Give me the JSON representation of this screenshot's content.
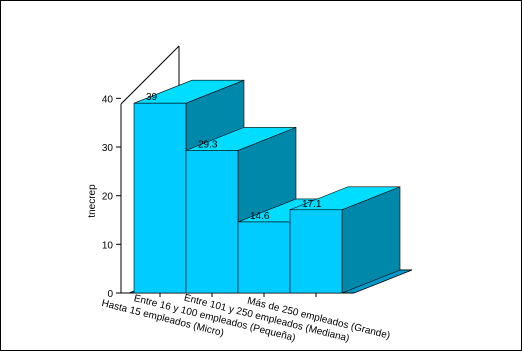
{
  "chart_data": {
    "type": "bar",
    "title": "",
    "xlabel": "",
    "ylabel": "tnecrep",
    "ylim": [
      0,
      45
    ],
    "yticks": [
      0,
      10,
      20,
      30,
      40
    ],
    "categories": [
      "Hasta 15 empleados (Micro)",
      "Entre 16 y 100 empleados (Pequeña)",
      "Entre 101 y 250 empleados (Mediana)",
      "Más de 250 empleados (Grande)"
    ],
    "values": [
      39,
      29.3,
      14.6,
      17.1
    ],
    "value_labels": [
      "39",
      "29.3",
      "14.6",
      "17.1"
    ],
    "style": "3d",
    "grid": false,
    "colors": {
      "front": "#00ccff",
      "side": "#0088aa",
      "top": "#00ddff",
      "floor": "#0099cc",
      "edge": "#000000"
    }
  }
}
